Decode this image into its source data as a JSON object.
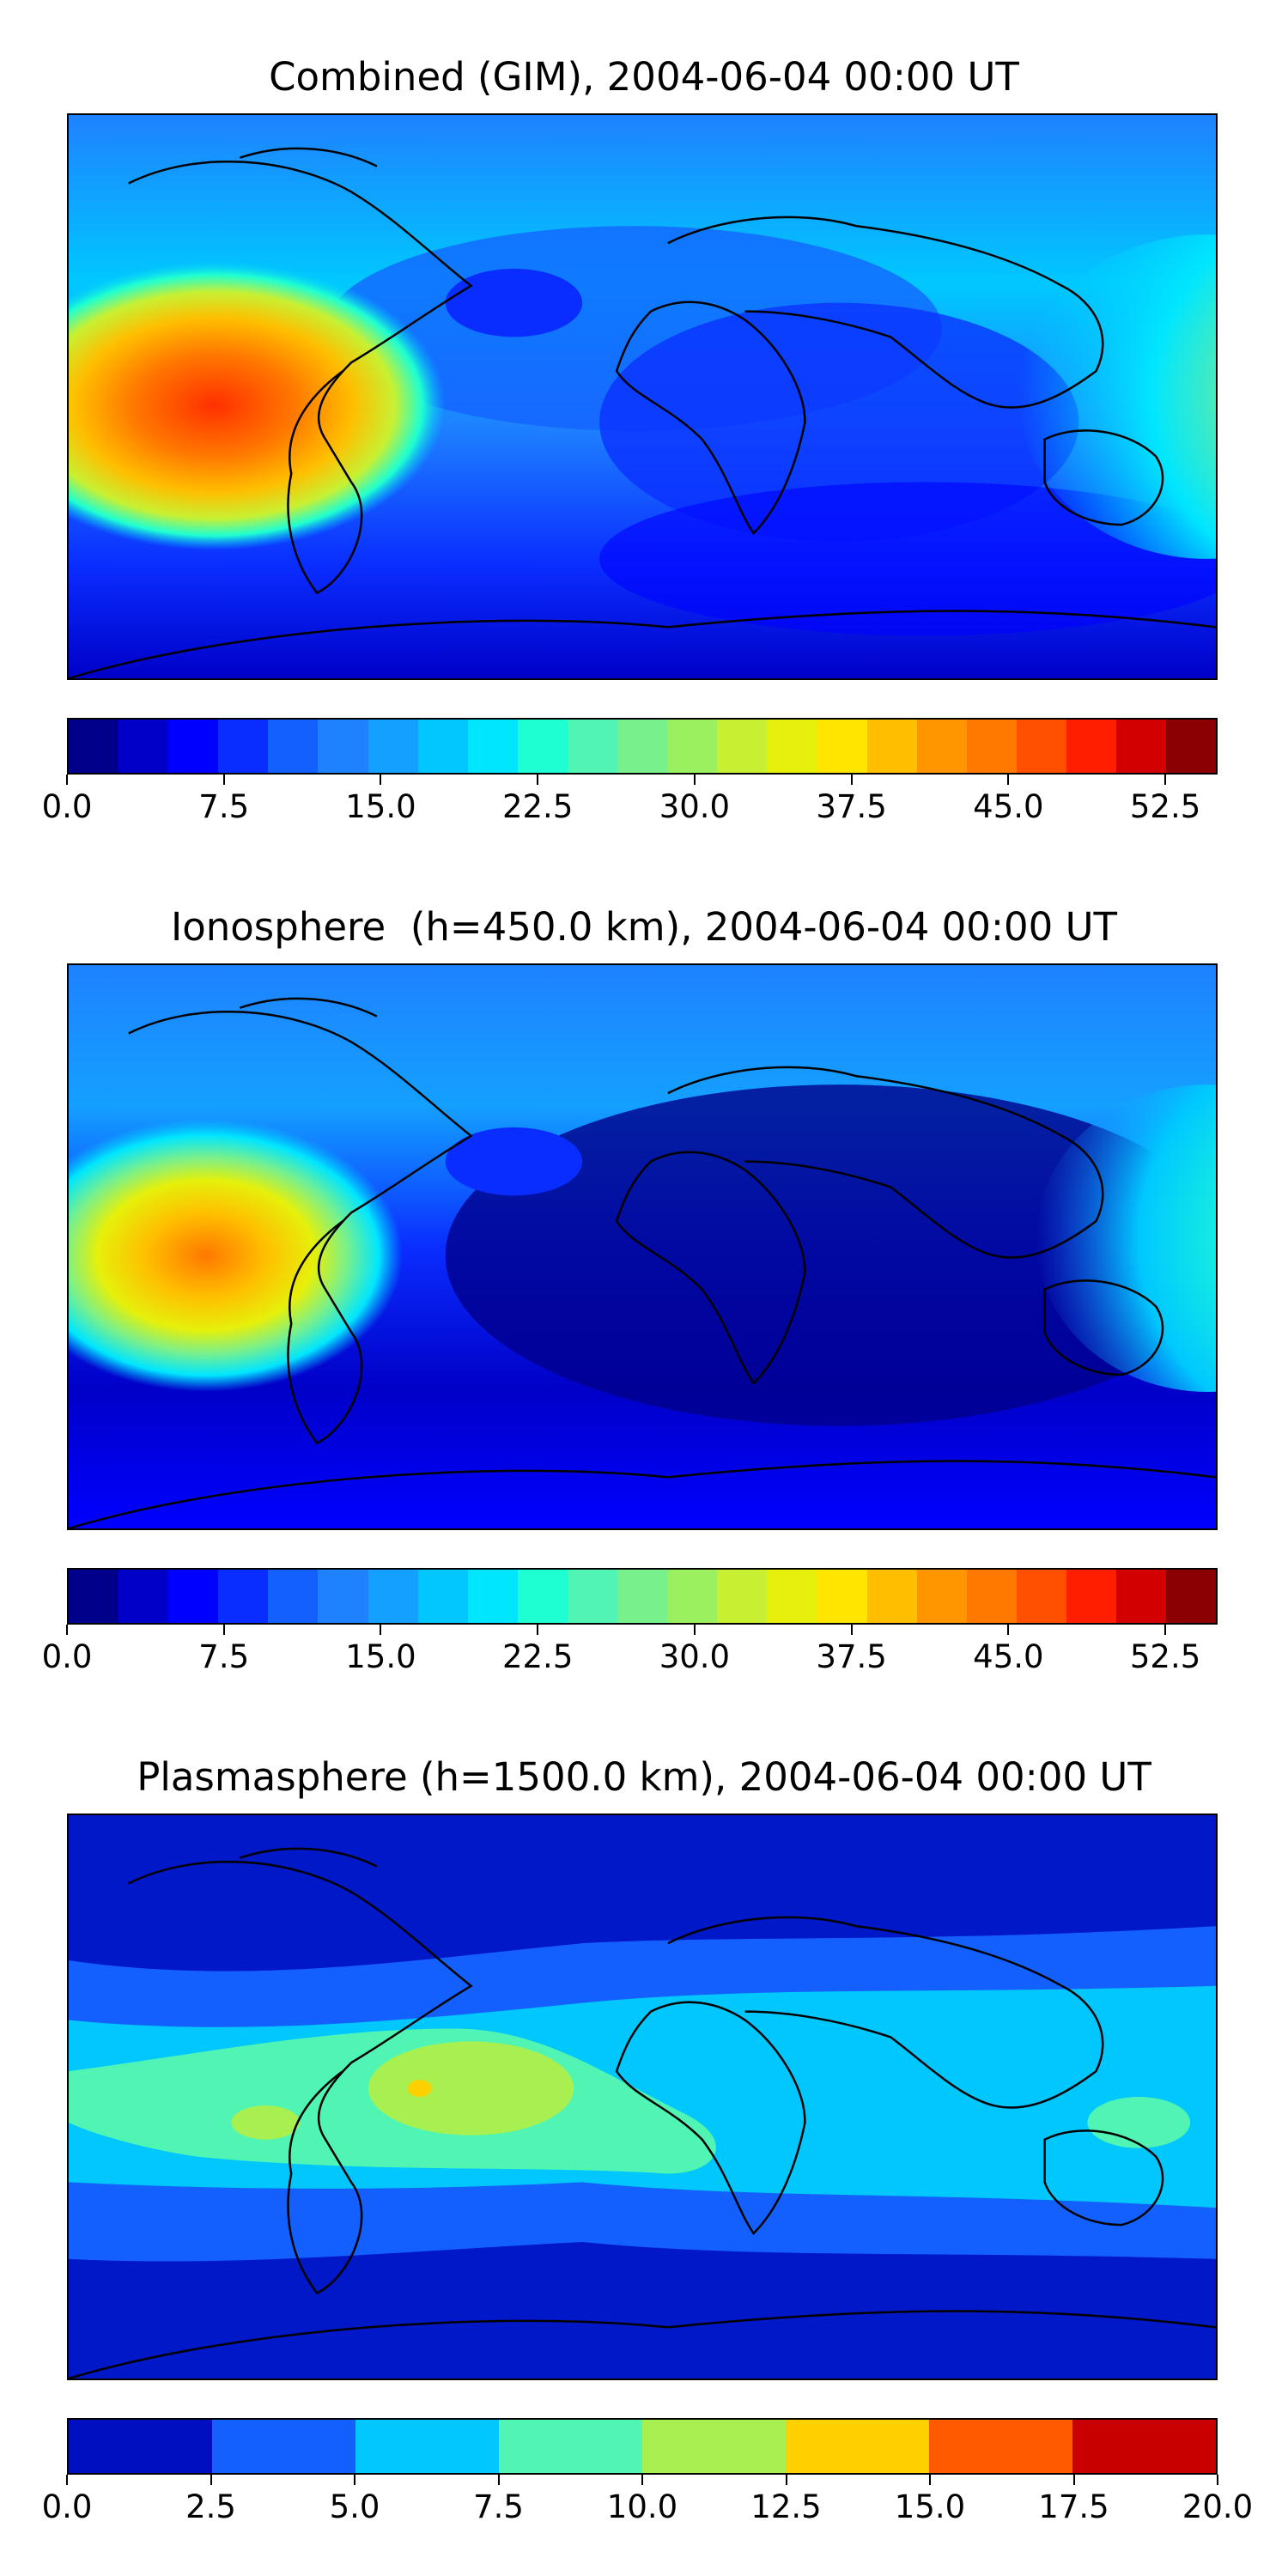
{
  "panels": [
    {
      "title": "Combined (GIM), 2004-06-04 00:00 UT",
      "map": {
        "projection": "plate-carree global",
        "background_color": "#0a2de0",
        "features": "coastlines",
        "blobs": [
          {
            "region": "central Pacific west of Central America",
            "color": "#ff8c00"
          },
          {
            "region": "western Pacific / Indonesia",
            "color": "#ffd700"
          }
        ]
      },
      "colorbar": {
        "colors": [
          "#00008b",
          "#0000c8",
          "#0000ff",
          "#0a2dff",
          "#1460ff",
          "#1e82ff",
          "#14a0ff",
          "#00c8ff",
          "#00e6ff",
          "#1effd2",
          "#50f5b4",
          "#78f08c",
          "#9bf060",
          "#c8f032",
          "#e6f00a",
          "#ffe600",
          "#ffbe00",
          "#ff9600",
          "#ff7800",
          "#ff5000",
          "#ff1e00",
          "#d20000",
          "#8b0000"
        ],
        "tick_labels": [
          "0.0",
          "7.5",
          "15.0",
          "22.5",
          "30.0",
          "37.5",
          "45.0",
          "52.5"
        ],
        "min": 0,
        "max": 55,
        "step": 7.5
      }
    },
    {
      "title": "Ionosphere  (h=450.0 km), 2004-06-04 00:00 UT",
      "map": {
        "projection": "plate-carree global",
        "background_color": "#0000c8",
        "features": "coastlines",
        "blobs": [
          {
            "region": "central Pacific west of Central America",
            "color": "#ffd700"
          },
          {
            "region": "western Pacific / Indonesia",
            "color": "#78f08c"
          }
        ]
      },
      "colorbar": {
        "colors": [
          "#00008b",
          "#0000c8",
          "#0000ff",
          "#0a2dff",
          "#1460ff",
          "#1e82ff",
          "#14a0ff",
          "#00c8ff",
          "#00e6ff",
          "#1effd2",
          "#50f5b4",
          "#78f08c",
          "#9bf060",
          "#c8f032",
          "#e6f00a",
          "#ffe600",
          "#ffbe00",
          "#ff9600",
          "#ff7800",
          "#ff5000",
          "#ff1e00",
          "#d20000",
          "#8b0000"
        ],
        "tick_labels": [
          "0.0",
          "7.5",
          "15.0",
          "22.5",
          "30.0",
          "37.5",
          "45.0",
          "52.5"
        ],
        "min": 0,
        "max": 55,
        "step": 7.5
      }
    },
    {
      "title": "Plasmasphere (h=1500.0 km), 2004-06-04 00:00 UT",
      "map": {
        "projection": "plate-carree global",
        "background_color": "#0018c8",
        "features": "coastlines",
        "blobs": [
          {
            "region": "equatorial band",
            "color": "#00c8ff"
          },
          {
            "region": "South America / Atlantic",
            "color": "#9bf060"
          }
        ]
      },
      "colorbar": {
        "colors": [
          "#0010c0",
          "#1460ff",
          "#00c8ff",
          "#50f5b4",
          "#a8f050",
          "#ffd000",
          "#ff5a00",
          "#c80000"
        ],
        "tick_labels": [
          "0.0",
          "2.5",
          "5.0",
          "7.5",
          "10.0",
          "12.5",
          "15.0",
          "17.5",
          "20.0"
        ],
        "min": 0,
        "max": 20,
        "step": 2.5
      }
    }
  ]
}
